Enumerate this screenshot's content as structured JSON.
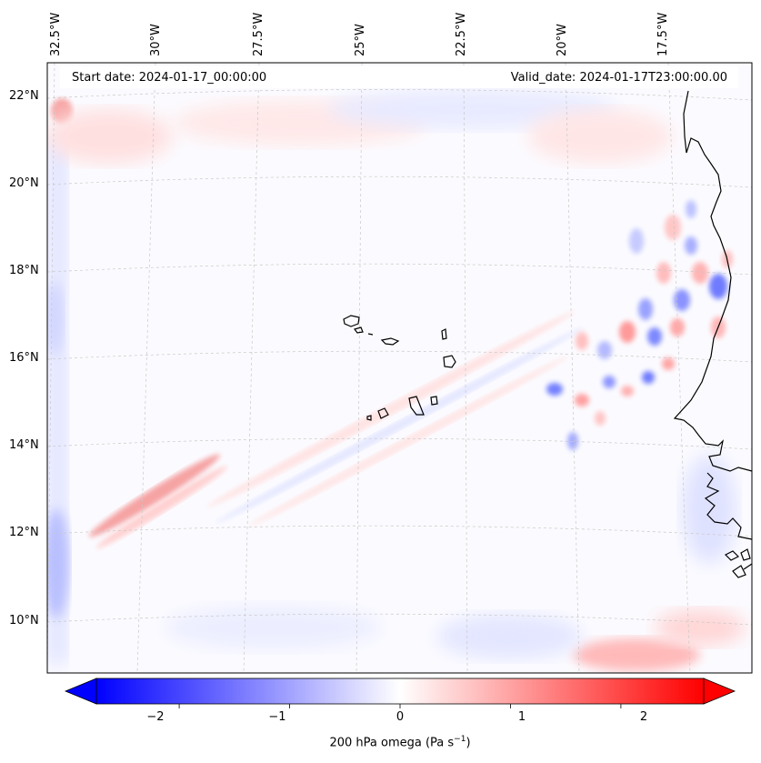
{
  "map": {
    "start_label": "Start date: 2024-01-17_00:00:00",
    "valid_label": "Valid_date: 2024-01-17T23:00:00.00",
    "lon_labels": [
      "32.5°W",
      "30°W",
      "27.5°W",
      "25°W",
      "22.5°W",
      "20°W",
      "17.5°W"
    ],
    "lat_labels": [
      "22°N",
      "20°N",
      "18°N",
      "16°N",
      "14°N",
      "12°N",
      "10°N"
    ]
  },
  "colorbar": {
    "ticks": [
      "−2",
      "−1",
      "0",
      "1",
      "2"
    ],
    "tick_values": [
      -2,
      -1,
      0,
      1,
      2
    ],
    "range": [
      -2.75,
      2.75
    ],
    "label_main": "200 hPa omega (Pa s",
    "label_sup": "−1",
    "label_end": ")",
    "cmap_low": "#0000ff",
    "cmap_mid": "#ffffff",
    "cmap_high": "#ff0000"
  },
  "colors": {
    "coast": "#000000",
    "grid": "#c8c8c8"
  }
}
